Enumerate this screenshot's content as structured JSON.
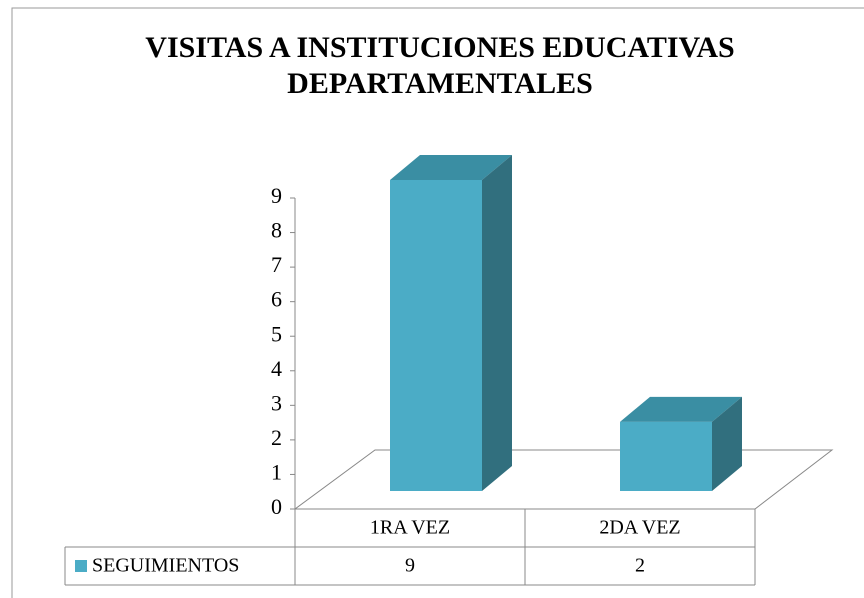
{
  "chart_data": {
    "type": "bar3d",
    "title": [
      "VISITAS A INSTITUCIONES EDUCATIVAS",
      "DEPARTAMENTALES"
    ],
    "categories": [
      "1RA VEZ",
      "2DA VEZ"
    ],
    "series": [
      {
        "name": "SEGUIMIENTOS",
        "color": "#4bacc6",
        "values": [
          9,
          2
        ]
      }
    ],
    "ylim": [
      0,
      9
    ],
    "yticks": [
      0,
      1,
      2,
      3,
      4,
      5,
      6,
      7,
      8,
      9
    ],
    "data_table": true
  }
}
